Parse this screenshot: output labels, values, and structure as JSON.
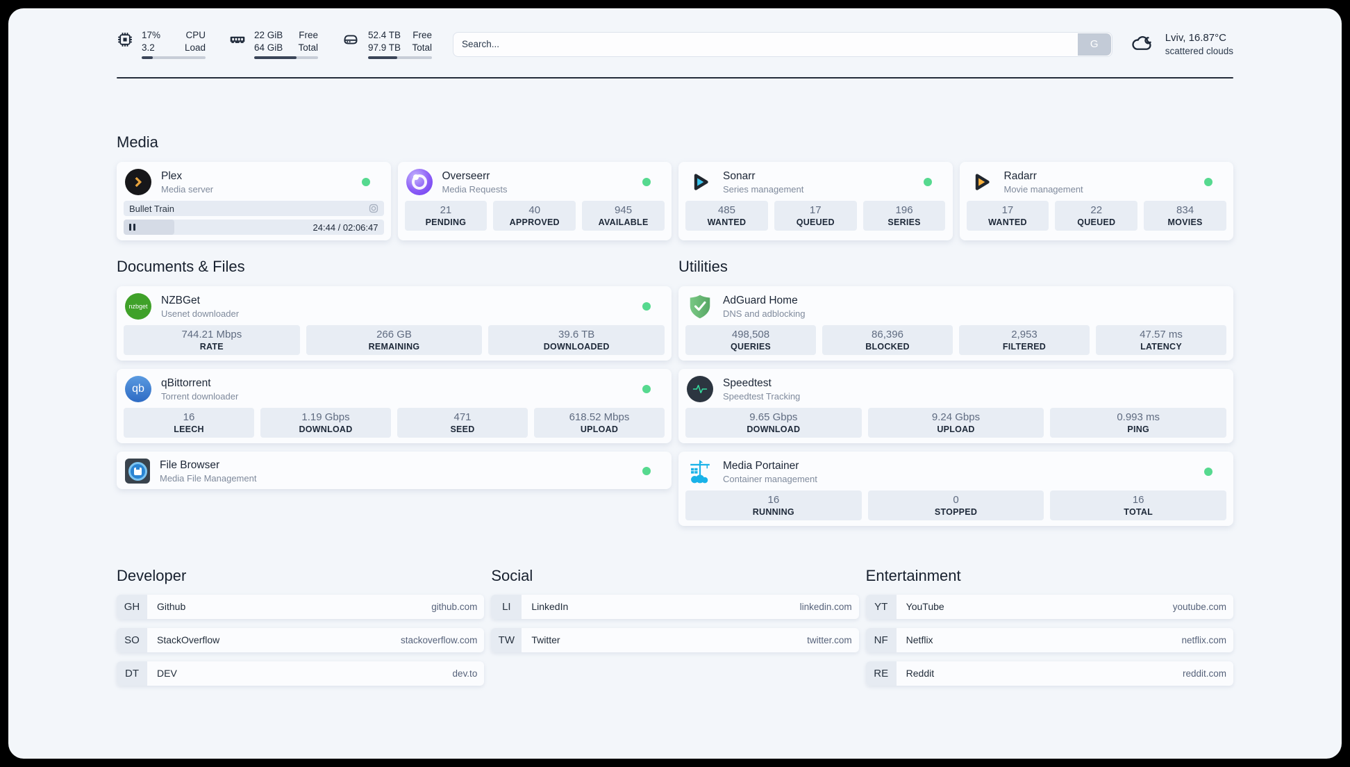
{
  "colors": {
    "status_green": "#56d98f",
    "accent_dark": "#1d2838",
    "page_background": "#f3f6fa"
  },
  "header": {
    "metrics": [
      {
        "icon": "cpu-icon",
        "value_top": "17%",
        "value_bottom": "3.2",
        "label_top": "CPU",
        "label_bottom": "Load",
        "progress_pct": 17
      },
      {
        "icon": "memory-icon",
        "value_top": "22 GiB",
        "value_bottom": "64 GiB",
        "label_top": "Free",
        "label_bottom": "Total",
        "progress_pct": 66
      },
      {
        "icon": "disk-icon",
        "value_top": "52.4 TB",
        "value_bottom": "97.9 TB",
        "label_top": "Free",
        "label_bottom": "Total",
        "progress_pct": 46
      }
    ],
    "search": {
      "placeholder": "Search...",
      "button_label": "G"
    },
    "weather": {
      "icon": "cloud-icon",
      "location_temp": "Lviv, 16.87°C",
      "condition": "scattered clouds"
    }
  },
  "media_section": {
    "title": "Media",
    "plex": {
      "title": "Plex",
      "subtitle": "Media server",
      "icon": "plex-icon",
      "now_playing": "Bullet Train",
      "time": "24:44 / 02:06:47",
      "progress_pct": 19.5
    },
    "overseerr": {
      "title": "Overseerr",
      "subtitle": "Media Requests",
      "icon": "overseerr-icon",
      "stats": [
        {
          "value": "21",
          "label": "PENDING"
        },
        {
          "value": "40",
          "label": "APPROVED"
        },
        {
          "value": "945",
          "label": "AVAILABLE"
        }
      ]
    },
    "sonarr": {
      "title": "Sonarr",
      "subtitle": "Series management",
      "icon": "sonarr-icon",
      "stats": [
        {
          "value": "485",
          "label": "WANTED"
        },
        {
          "value": "17",
          "label": "QUEUED"
        },
        {
          "value": "196",
          "label": "SERIES"
        }
      ]
    },
    "radarr": {
      "title": "Radarr",
      "subtitle": "Movie management",
      "icon": "radarr-icon",
      "stats": [
        {
          "value": "17",
          "label": "WANTED"
        },
        {
          "value": "22",
          "label": "QUEUED"
        },
        {
          "value": "834",
          "label": "MOVIES"
        }
      ]
    }
  },
  "documents_section": {
    "title": "Documents & Files",
    "nzbget": {
      "title": "NZBGet",
      "subtitle": "Usenet downloader",
      "icon": "nzbget-icon",
      "icon_text": "nzbget",
      "stats": [
        {
          "value": "744.21 Mbps",
          "label": "RATE"
        },
        {
          "value": "266 GB",
          "label": "REMAINING"
        },
        {
          "value": "39.6 TB",
          "label": "DOWNLOADED"
        }
      ]
    },
    "qbittorrent": {
      "title": "qBittorrent",
      "subtitle": "Torrent downloader",
      "icon": "qbittorrent-icon",
      "icon_text": "qb",
      "stats": [
        {
          "value": "16",
          "label": "LEECH"
        },
        {
          "value": "1.19 Gbps",
          "label": "DOWNLOAD"
        },
        {
          "value": "471",
          "label": "SEED"
        },
        {
          "value": "618.52 Mbps",
          "label": "UPLOAD"
        }
      ]
    },
    "filebrowser": {
      "title": "File Browser",
      "subtitle": "Media File Management",
      "icon": "filebrowser-icon"
    }
  },
  "utilities_section": {
    "title": "Utilities",
    "adguard": {
      "title": "AdGuard Home",
      "subtitle": "DNS and adblocking",
      "icon": "adguard-shield-icon",
      "stats": [
        {
          "value": "498,508",
          "label": "QUERIES"
        },
        {
          "value": "86,396",
          "label": "BLOCKED"
        },
        {
          "value": "2,953",
          "label": "FILTERED"
        },
        {
          "value": "47.57 ms",
          "label": "LATENCY"
        }
      ]
    },
    "speedtest": {
      "title": "Speedtest",
      "subtitle": "Speedtest Tracking",
      "icon": "speedtest-pulse-icon",
      "stats": [
        {
          "value": "9.65 Gbps",
          "label": "DOWNLOAD"
        },
        {
          "value": "9.24 Gbps",
          "label": "UPLOAD"
        },
        {
          "value": "0.993 ms",
          "label": "PING"
        }
      ]
    },
    "portainer": {
      "title": "Media Portainer",
      "subtitle": "Container management",
      "icon": "portainer-crane-icon",
      "stats": [
        {
          "value": "16",
          "label": "RUNNING"
        },
        {
          "value": "0",
          "label": "STOPPED"
        },
        {
          "value": "16",
          "label": "TOTAL"
        }
      ]
    }
  },
  "link_sections": {
    "developer": {
      "title": "Developer",
      "links": [
        {
          "initials": "GH",
          "name": "Github",
          "url": "github.com"
        },
        {
          "initials": "SO",
          "name": "StackOverflow",
          "url": "stackoverflow.com"
        },
        {
          "initials": "DT",
          "name": "DEV",
          "url": "dev.to"
        }
      ]
    },
    "social": {
      "title": "Social",
      "links": [
        {
          "initials": "LI",
          "name": "LinkedIn",
          "url": "linkedin.com"
        },
        {
          "initials": "TW",
          "name": "Twitter",
          "url": "twitter.com"
        }
      ]
    },
    "entertainment": {
      "title": "Entertainment",
      "links": [
        {
          "initials": "YT",
          "name": "YouTube",
          "url": "youtube.com"
        },
        {
          "initials": "NF",
          "name": "Netflix",
          "url": "netflix.com"
        },
        {
          "initials": "RE",
          "name": "Reddit",
          "url": "reddit.com"
        }
      ]
    }
  }
}
